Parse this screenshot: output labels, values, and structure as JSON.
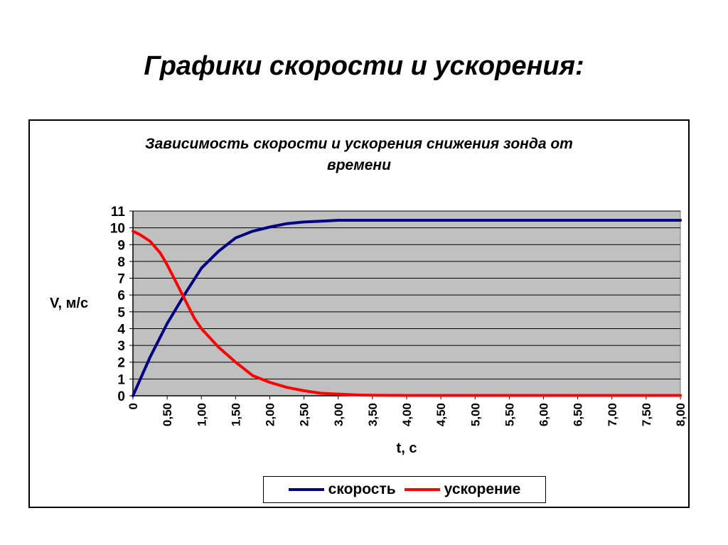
{
  "slide": {
    "title": "Графики скорости и ускорения:"
  },
  "chart_data": {
    "type": "line",
    "title_lines": [
      "Зависимость скорости и ускорения снижения зонда от",
      "времени"
    ],
    "xlabel": "t, c",
    "ylabel": "V, м/с",
    "xlim": [
      0,
      8
    ],
    "ylim": [
      0,
      11
    ],
    "x_ticks": [
      "0",
      "0,50",
      "1,00",
      "1,50",
      "2,00",
      "2,50",
      "3,00",
      "3,50",
      "4,00",
      "4,50",
      "5,00",
      "5,50",
      "6,00",
      "6,50",
      "7,00",
      "7,50",
      "8,00"
    ],
    "y_ticks": [
      "0",
      "1",
      "2",
      "3",
      "4",
      "5",
      "6",
      "7",
      "8",
      "9",
      "10",
      "11"
    ],
    "grid": true,
    "legend_position": "bottom",
    "series": [
      {
        "name": "скорость",
        "color": "#000080",
        "x": [
          0,
          0.25,
          0.5,
          0.75,
          1.0,
          1.25,
          1.5,
          1.75,
          2.0,
          2.25,
          2.5,
          2.75,
          3.0,
          3.5,
          4.0,
          5.0,
          6.0,
          7.0,
          8.0
        ],
        "y": [
          0,
          2.3,
          4.3,
          6.0,
          7.6,
          8.6,
          9.4,
          9.8,
          10.05,
          10.25,
          10.35,
          10.4,
          10.45,
          10.45,
          10.45,
          10.45,
          10.45,
          10.45,
          10.45
        ]
      },
      {
        "name": "ускорение",
        "color": "#ff0000",
        "x": [
          0,
          0.1,
          0.25,
          0.4,
          0.5,
          0.6,
          0.75,
          0.9,
          1.0,
          1.25,
          1.5,
          1.75,
          2.0,
          2.25,
          2.5,
          2.75,
          3.0,
          3.25,
          3.5,
          4.0,
          5.0,
          6.0,
          7.0,
          8.0
        ],
        "y": [
          9.8,
          9.6,
          9.2,
          8.5,
          7.8,
          7.0,
          5.8,
          4.6,
          4.0,
          2.9,
          2.0,
          1.2,
          0.8,
          0.5,
          0.3,
          0.15,
          0.1,
          0.05,
          0.03,
          0.02,
          0.02,
          0.02,
          0.02,
          0.02
        ]
      }
    ]
  }
}
